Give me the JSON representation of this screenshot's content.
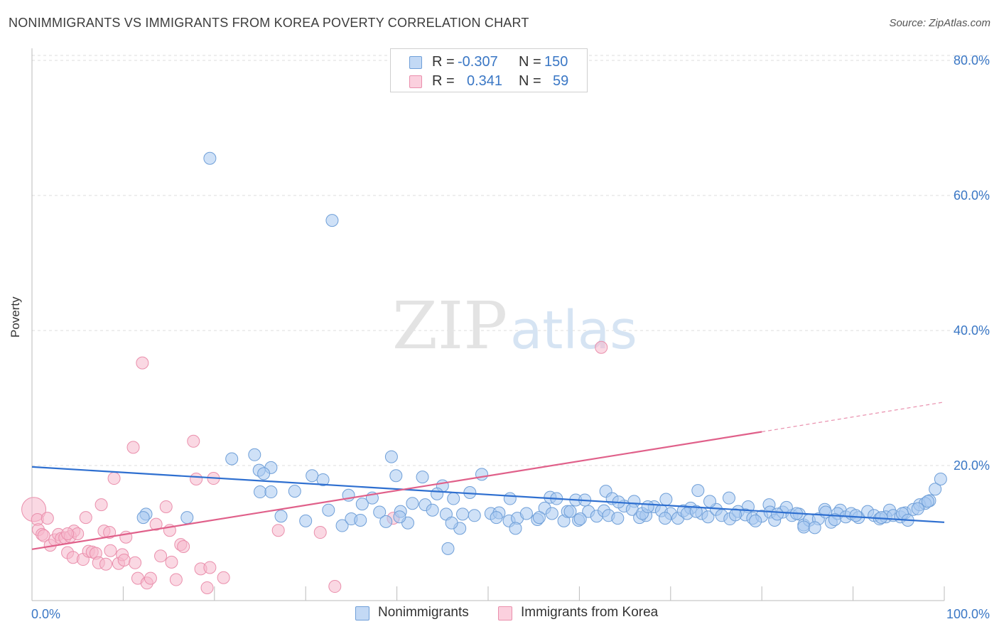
{
  "title": "NONIMMIGRANTS VS IMMIGRANTS FROM KOREA POVERTY CORRELATION CHART",
  "source": "Source: ZipAtlas.com",
  "watermark": {
    "part1": "ZIP",
    "part2": "atlas"
  },
  "legend_box": {
    "rows": [
      {
        "r_label": "R =",
        "r_value": "-0.307",
        "n_label": "N =",
        "n_value": "150",
        "color": "#a8c8f0"
      },
      {
        "r_label": "R =",
        "r_value": "0.341",
        "n_label": "N =",
        "n_value": "59",
        "color": "#f6b8cc"
      }
    ]
  },
  "bottom_legend": {
    "series1": "Nonimmigrants",
    "series2": "Immigrants from Korea"
  },
  "colors": {
    "blue_fill": "#a8c8f0",
    "blue_stroke": "#6f9fd8",
    "blue_line": "#2e6fd0",
    "pink_fill": "#f6b8cc",
    "pink_stroke": "#ea8fac",
    "pink_line": "#e0608a",
    "axis_label": "#3a77c5",
    "grid": "#dddddd"
  },
  "chart_data": {
    "type": "scatter",
    "title": "NONIMMIGRANTS VS IMMIGRANTS FROM KOREA POVERTY CORRELATION CHART",
    "xlabel": "",
    "ylabel": "Poverty",
    "xlim": [
      0,
      100
    ],
    "ylim": [
      0,
      80
    ],
    "x_tick_labels": [
      "0.0%",
      "100.0%"
    ],
    "y_tick_labels": [
      "20.0%",
      "40.0%",
      "60.0%",
      "80.0%"
    ],
    "y_ticks": [
      20,
      40,
      60,
      80
    ],
    "series": [
      {
        "name": "Nonimmigrants",
        "R": -0.307,
        "N": 150,
        "trend": {
          "x": [
            0,
            100
          ],
          "y": [
            19.8,
            11.6
          ]
        },
        "points": [
          [
            19.5,
            65.5
          ],
          [
            32.9,
            56.3
          ],
          [
            21.9,
            21.0
          ],
          [
            24.4,
            21.6
          ],
          [
            26.2,
            19.7
          ],
          [
            24.9,
            19.3
          ],
          [
            25.4,
            18.8
          ],
          [
            30.7,
            18.5
          ],
          [
            31.9,
            17.9
          ],
          [
            42.8,
            18.3
          ],
          [
            39.4,
            21.3
          ],
          [
            45.0,
            17.0
          ],
          [
            39.9,
            18.5
          ],
          [
            49.3,
            18.7
          ],
          [
            48.0,
            16.0
          ],
          [
            44.4,
            15.8
          ],
          [
            43.1,
            14.2
          ],
          [
            46.2,
            15.1
          ],
          [
            25.0,
            16.1
          ],
          [
            26.2,
            16.1
          ],
          [
            28.8,
            16.2
          ],
          [
            34.7,
            15.6
          ],
          [
            37.3,
            15.2
          ],
          [
            41.7,
            14.4
          ],
          [
            52.4,
            15.1
          ],
          [
            56.8,
            15.3
          ],
          [
            57.5,
            15.1
          ],
          [
            59.6,
            14.9
          ],
          [
            62.9,
            16.2
          ],
          [
            63.6,
            15.1
          ],
          [
            66.0,
            14.7
          ],
          [
            69.5,
            15.0
          ],
          [
            73.0,
            16.3
          ],
          [
            76.4,
            15.2
          ],
          [
            78.5,
            13.9
          ],
          [
            80.8,
            14.2
          ],
          [
            86.9,
            13.5
          ],
          [
            88.6,
            13.4
          ],
          [
            94.0,
            13.4
          ],
          [
            98.4,
            14.8
          ],
          [
            99.0,
            16.5
          ],
          [
            99.6,
            18.0
          ],
          [
            12.5,
            12.8
          ],
          [
            17.0,
            12.3
          ],
          [
            27.3,
            12.5
          ],
          [
            30.0,
            11.8
          ],
          [
            32.5,
            13.4
          ],
          [
            34.0,
            11.1
          ],
          [
            35.0,
            12.1
          ],
          [
            36.0,
            11.9
          ],
          [
            38.1,
            13.1
          ],
          [
            38.8,
            11.7
          ],
          [
            40.4,
            13.2
          ],
          [
            41.2,
            11.5
          ],
          [
            43.9,
            13.4
          ],
          [
            45.4,
            12.8
          ],
          [
            47.2,
            12.8
          ],
          [
            48.5,
            12.6
          ],
          [
            50.3,
            12.9
          ],
          [
            51.2,
            13.0
          ],
          [
            52.3,
            11.8
          ],
          [
            53.2,
            12.2
          ],
          [
            54.2,
            12.9
          ],
          [
            55.4,
            12.0
          ],
          [
            56.2,
            13.7
          ],
          [
            57.0,
            12.9
          ],
          [
            58.3,
            11.8
          ],
          [
            59.9,
            11.9
          ],
          [
            61.0,
            13.2
          ],
          [
            61.9,
            12.5
          ],
          [
            62.7,
            13.3
          ],
          [
            63.2,
            12.6
          ],
          [
            64.2,
            12.2
          ],
          [
            64.9,
            14.0
          ],
          [
            65.8,
            13.5
          ],
          [
            66.6,
            12.3
          ],
          [
            67.3,
            12.6
          ],
          [
            68.2,
            13.9
          ],
          [
            69.0,
            13.3
          ],
          [
            70.0,
            12.9
          ],
          [
            70.8,
            12.2
          ],
          [
            71.4,
            13.3
          ],
          [
            72.2,
            13.7
          ],
          [
            73.4,
            12.9
          ],
          [
            74.1,
            12.4
          ],
          [
            75.0,
            13.5
          ],
          [
            75.6,
            12.6
          ],
          [
            76.5,
            12.1
          ],
          [
            77.4,
            13.2
          ],
          [
            78.2,
            12.7
          ],
          [
            79.0,
            12.2
          ],
          [
            80.0,
            12.5
          ],
          [
            80.9,
            13.1
          ],
          [
            81.4,
            11.9
          ],
          [
            82.3,
            13.1
          ],
          [
            83.3,
            12.6
          ],
          [
            84.1,
            12.8
          ],
          [
            84.6,
            11.2
          ],
          [
            85.2,
            11.9
          ],
          [
            86.2,
            12.1
          ],
          [
            87.0,
            13.1
          ],
          [
            87.6,
            11.6
          ],
          [
            88.3,
            12.9
          ],
          [
            89.2,
            12.4
          ],
          [
            89.8,
            12.9
          ],
          [
            90.6,
            12.3
          ],
          [
            91.6,
            13.2
          ],
          [
            92.3,
            12.6
          ],
          [
            92.9,
            12.1
          ],
          [
            93.6,
            12.4
          ],
          [
            94.4,
            12.6
          ],
          [
            95.2,
            12.4
          ],
          [
            95.7,
            13.0
          ],
          [
            96.6,
            13.5
          ],
          [
            97.3,
            14.2
          ],
          [
            97.9,
            14.4
          ],
          [
            84.6,
            10.9
          ],
          [
            85.8,
            10.8
          ],
          [
            46.9,
            10.7
          ],
          [
            53.0,
            10.7
          ],
          [
            12.2,
            12.3
          ],
          [
            82.7,
            13.8
          ],
          [
            60.6,
            14.9
          ],
          [
            36.2,
            14.3
          ],
          [
            40.3,
            12.4
          ],
          [
            50.9,
            12.3
          ],
          [
            55.6,
            12.3
          ],
          [
            58.7,
            13.2
          ],
          [
            60.1,
            12.1
          ],
          [
            66.9,
            12.9
          ],
          [
            71.8,
            12.9
          ],
          [
            74.3,
            14.7
          ],
          [
            77.1,
            12.7
          ],
          [
            79.3,
            11.8
          ],
          [
            81.7,
            12.8
          ],
          [
            83.8,
            12.9
          ],
          [
            88.0,
            12.0
          ],
          [
            90.3,
            12.6
          ],
          [
            93.1,
            12.3
          ],
          [
            95.4,
            12.9
          ],
          [
            96.0,
            11.9
          ],
          [
            97.1,
            13.6
          ],
          [
            98.2,
            14.7
          ],
          [
            59.0,
            13.2
          ],
          [
            72.8,
            13.2
          ],
          [
            67.5,
            13.9
          ],
          [
            69.4,
            12.2
          ],
          [
            64.3,
            14.6
          ],
          [
            46.0,
            11.5
          ],
          [
            45.6,
            7.7
          ]
        ]
      },
      {
        "name": "Immigrants from Korea",
        "R": 0.341,
        "N": 59,
        "trend": {
          "x": [
            0,
            80
          ],
          "y": [
            7.6,
            25.0
          ]
        },
        "trend_dashed": {
          "x": [
            80,
            100
          ],
          "y": [
            25.0,
            29.4
          ]
        },
        "points": [
          [
            0.2,
            13.5
          ],
          [
            0.6,
            12.0
          ],
          [
            0.7,
            10.5
          ],
          [
            1.1,
            9.8
          ],
          [
            1.3,
            9.6
          ],
          [
            1.7,
            12.2
          ],
          [
            2.0,
            8.2
          ],
          [
            2.5,
            9.0
          ],
          [
            2.9,
            9.8
          ],
          [
            3.2,
            9.2
          ],
          [
            3.6,
            9.3
          ],
          [
            3.9,
            7.1
          ],
          [
            4.2,
            9.5
          ],
          [
            4.5,
            6.4
          ],
          [
            4.6,
            10.3
          ],
          [
            5.0,
            9.9
          ],
          [
            5.6,
            6.1
          ],
          [
            5.9,
            12.3
          ],
          [
            6.2,
            7.3
          ],
          [
            6.6,
            7.2
          ],
          [
            7.0,
            7.0
          ],
          [
            7.3,
            5.6
          ],
          [
            7.6,
            14.2
          ],
          [
            7.9,
            10.3
          ],
          [
            8.1,
            5.4
          ],
          [
            8.5,
            10.1
          ],
          [
            8.6,
            7.4
          ],
          [
            9.0,
            18.1
          ],
          [
            9.5,
            5.5
          ],
          [
            9.9,
            6.8
          ],
          [
            10.1,
            6.0
          ],
          [
            10.3,
            9.4
          ],
          [
            11.1,
            22.7
          ],
          [
            11.3,
            5.6
          ],
          [
            11.6,
            3.3
          ],
          [
            12.1,
            35.2
          ],
          [
            12.6,
            2.6
          ],
          [
            13.0,
            3.3
          ],
          [
            13.6,
            11.3
          ],
          [
            14.1,
            6.6
          ],
          [
            14.7,
            13.9
          ],
          [
            15.1,
            10.4
          ],
          [
            15.3,
            5.7
          ],
          [
            15.8,
            3.1
          ],
          [
            16.3,
            8.3
          ],
          [
            16.6,
            8.0
          ],
          [
            17.7,
            23.6
          ],
          [
            18.0,
            18.0
          ],
          [
            18.5,
            4.7
          ],
          [
            19.2,
            1.9
          ],
          [
            19.5,
            4.9
          ],
          [
            19.9,
            18.1
          ],
          [
            21.0,
            3.4
          ],
          [
            27.0,
            10.4
          ],
          [
            31.6,
            10.1
          ],
          [
            33.2,
            2.1
          ],
          [
            39.6,
            12.2
          ],
          [
            62.4,
            37.5
          ],
          [
            3.9,
            9.9
          ]
        ]
      }
    ]
  }
}
